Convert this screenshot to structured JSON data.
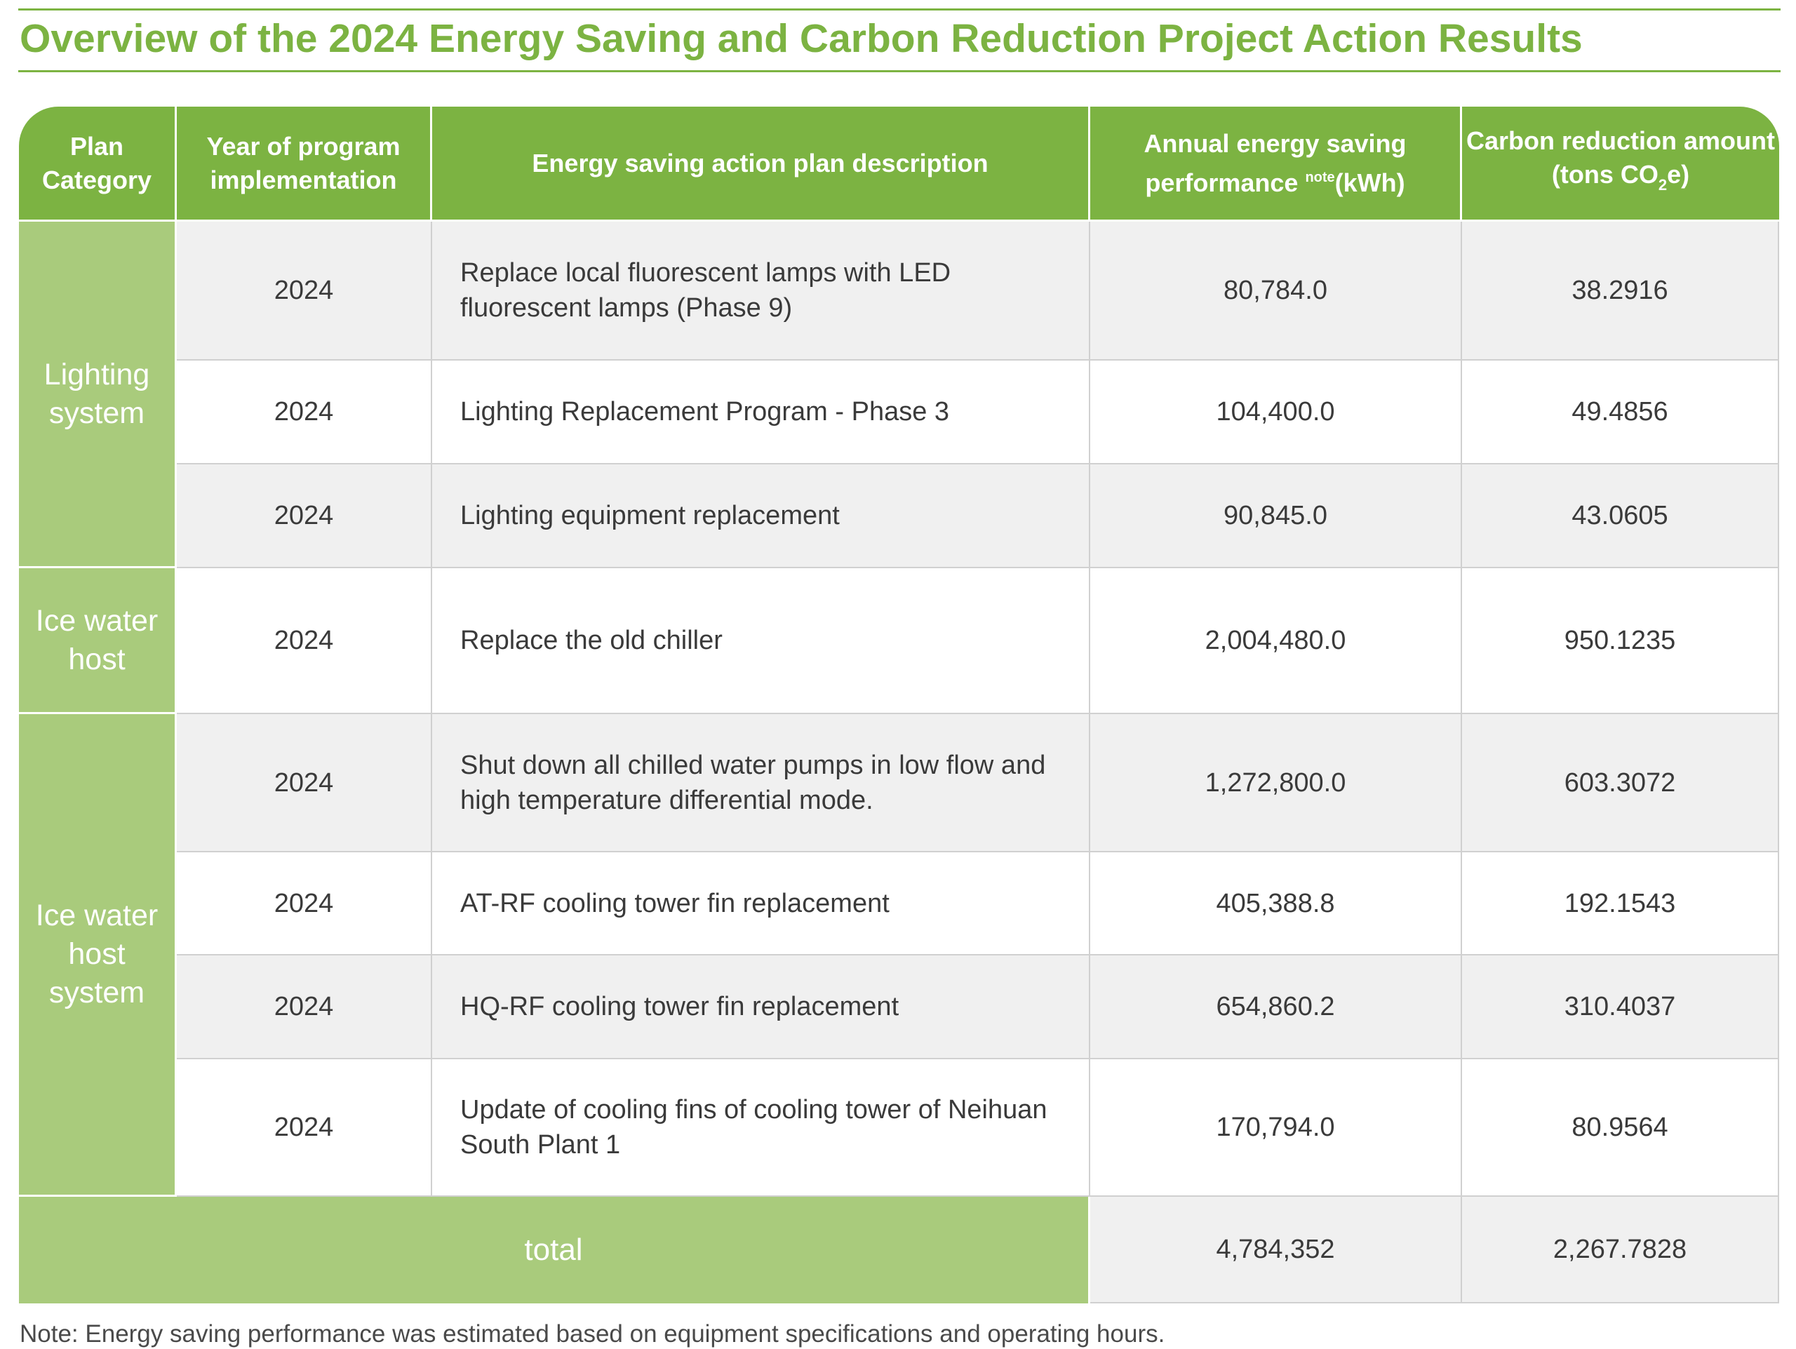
{
  "title": "Overview of the 2024 Energy Saving and Carbon Reduction Project Action Results",
  "headers": {
    "category": "Plan Category",
    "year": "Year of program implementation",
    "description": "Energy saving action plan description",
    "energy_main": "Annual energy saving performance ",
    "energy_sup": "note",
    "energy_unit": "(kWh)",
    "carbon_main": "Carbon reduction amount (tons CO",
    "carbon_sub": "2",
    "carbon_unit": "e)"
  },
  "categories": [
    "Lighting system",
    "Ice water host",
    "Ice water host system"
  ],
  "rows": [
    {
      "year": "2024",
      "description": "Replace local fluorescent lamps with LED fluorescent lamps (Phase 9)",
      "energy": "80,784.0",
      "carbon": "38.2916"
    },
    {
      "year": "2024",
      "description": "Lighting Replacement Program - Phase 3",
      "energy": "104,400.0",
      "carbon": "49.4856"
    },
    {
      "year": "2024",
      "description": "Lighting equipment replacement",
      "energy": "90,845.0",
      "carbon": "43.0605"
    },
    {
      "year": "2024",
      "description": "Replace the old chiller",
      "energy": "2,004,480.0",
      "carbon": "950.1235"
    },
    {
      "year": "2024",
      "description": "Shut down all chilled water pumps in low flow and high temperature differential mode.",
      "energy": "1,272,800.0",
      "carbon": "603.3072"
    },
    {
      "year": "2024",
      "description": "AT-RF cooling tower fin replacement",
      "energy": "405,388.8",
      "carbon": "192.1543"
    },
    {
      "year": "2024",
      "description": "HQ-RF cooling tower fin replacement",
      "energy": "654,860.2",
      "carbon": "310.4037"
    },
    {
      "year": "2024",
      "description": "Update of cooling fins of cooling tower of Neihuan South Plant 1",
      "energy": "170,794.0",
      "carbon": "80.9564"
    }
  ],
  "total": {
    "label": "total",
    "energy": "4,784,352",
    "carbon": "2,267.7828"
  },
  "note": "Note: Energy saving performance was estimated based on equipment specifications and operating hours.",
  "colors": {
    "accent": "#7cb342",
    "category_fill": "#a9cb7c",
    "row_grey": "#f0f0f0"
  }
}
